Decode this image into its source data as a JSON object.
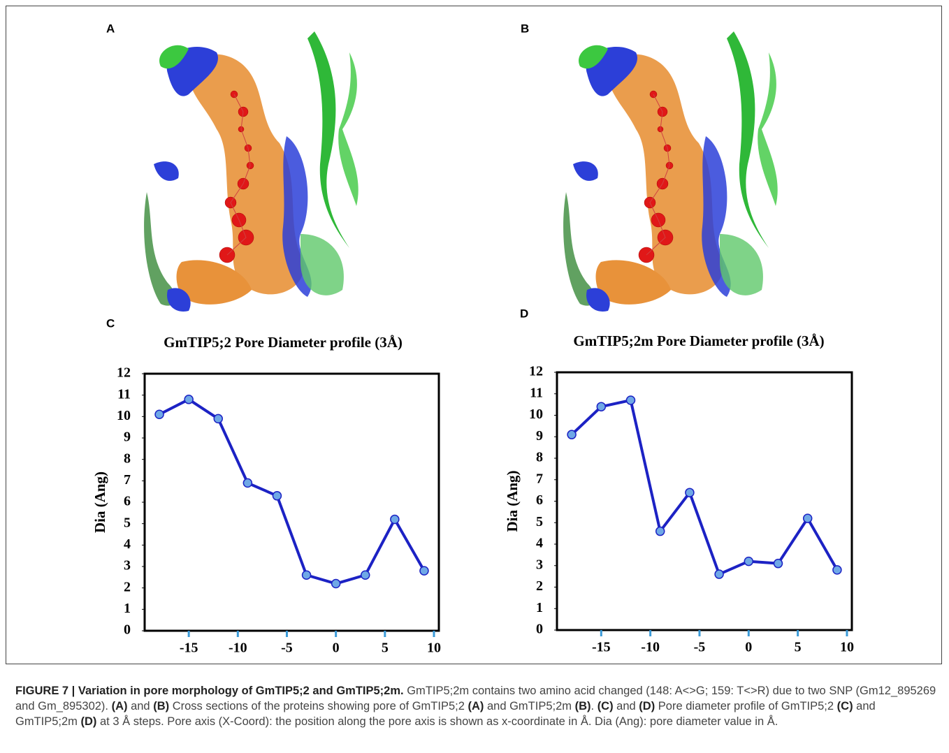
{
  "panels": [
    "A",
    "B",
    "C",
    "D"
  ],
  "caption": [
    "FIGURE 7 | Variation in pore morphology of GmTIP5;2 and GmTIP5;2m.",
    " GmTIP5;2m contains two amino acid changed (148: A<>G; 159: T<>R) due to two SNP (Gm12_895269 and Gm_895302). ",
    "(A)",
    " and ",
    "(B)",
    " Cross sections of the proteins showing pore of GmTIP5;2 ",
    "(A)",
    " and GmTIP5;2m ",
    "(B)",
    ". ",
    "(C)",
    " and ",
    "(D)",
    " Pore diameter profile of GmTIP5;2 ",
    "(C)",
    " and GmTIP5;2m ",
    "(D)",
    " at 3 Å steps. Pore axis (X-Coord): the position along the pore axis is shown as x-coordinate in Å. Dia (Ang): pore diameter value in Å."
  ],
  "chart_data": [
    {
      "type": "line",
      "title": "GmTIP5;2 Pore Diameter profile (3Å)",
      "y_label": "Dia (Ang)",
      "x": [
        -18,
        -15,
        -12,
        -9,
        -6,
        -3,
        0,
        3,
        6,
        9
      ],
      "values": [
        10.1,
        10.8,
        9.9,
        6.9,
        6.3,
        2.6,
        2.2,
        2.6,
        5.2,
        2.8
      ],
      "color": "#1c22c4",
      "marker_color": "#6fa8e6",
      "xlim": [
        -19.5,
        10.5
      ],
      "ylim": [
        0,
        12
      ],
      "xticks": [
        -15,
        -10,
        -5,
        0,
        5,
        10
      ],
      "yticks": [
        0,
        1,
        2,
        3,
        4,
        5,
        6,
        7,
        8,
        9,
        10,
        11,
        12
      ]
    },
    {
      "type": "line",
      "title": "GmTIP5;2m Pore Diameter profile (3Å)",
      "y_label": "Dia (Ang)",
      "x": [
        -18,
        -15,
        -12,
        -9,
        -6,
        -3,
        0,
        3,
        6,
        9
      ],
      "values": [
        9.1,
        10.4,
        10.7,
        4.6,
        6.4,
        2.6,
        3.2,
        3.1,
        5.2,
        2.8
      ],
      "color": "#1c22c4",
      "marker_color": "#6fa8e6",
      "xlim": [
        -19.5,
        10.5
      ],
      "ylim": [
        0,
        12
      ],
      "xticks": [
        -15,
        -10,
        -5,
        0,
        5,
        10
      ],
      "yticks": [
        0,
        1,
        2,
        3,
        4,
        5,
        6,
        7,
        8,
        9,
        10,
        11,
        12
      ]
    }
  ]
}
